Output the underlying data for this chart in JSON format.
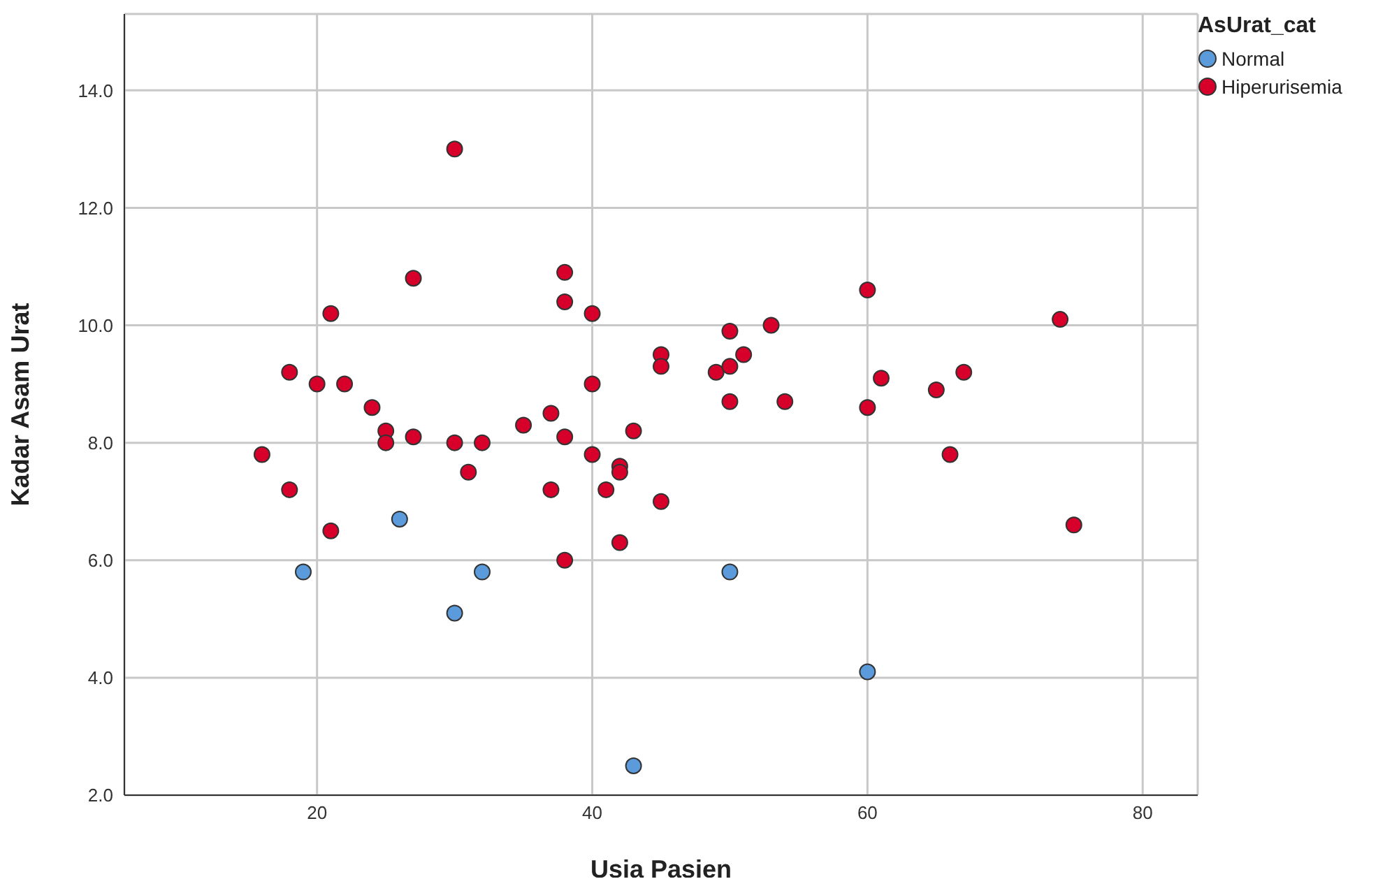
{
  "chart_data": {
    "type": "scatter",
    "xlabel": "Usia Pasien",
    "ylabel": "Kadar Asam Urat",
    "legend_title": "AsUrat_cat",
    "legend": "top right",
    "grid": true,
    "marker": "circle",
    "xlim": [
      6,
      84
    ],
    "xticks": [
      20,
      40,
      60,
      80
    ],
    "ylim": [
      2,
      15.3
    ],
    "yticks": [
      {
        "value": 2,
        "label": "2.0"
      },
      {
        "value": 4,
        "label": "4.0"
      },
      {
        "value": 6,
        "label": "6.0"
      },
      {
        "value": 8,
        "label": "8.0"
      },
      {
        "value": 10,
        "label": "10.0"
      },
      {
        "value": 12,
        "label": "12.0"
      },
      {
        "value": 14,
        "label": "14.0"
      }
    ],
    "series": [
      {
        "name": "Normal",
        "color": "#5b9bdc",
        "x": [
          19,
          26,
          30,
          32,
          43,
          50,
          60
        ],
        "values": [
          5.8,
          6.7,
          5.1,
          5.8,
          2.5,
          5.8,
          4.1
        ]
      },
      {
        "name": "Hiperurisemia",
        "color": "#d6002a",
        "x": [
          16,
          18,
          18,
          20,
          21,
          21,
          22,
          24,
          25,
          25,
          27,
          27,
          30,
          30,
          31,
          32,
          35,
          37,
          37,
          38,
          38,
          38,
          38,
          40,
          40,
          40,
          41,
          42,
          42,
          42,
          43,
          45,
          45,
          45,
          49,
          50,
          50,
          50,
          51,
          53,
          54,
          60,
          60,
          61,
          65,
          66,
          67,
          74,
          75
        ],
        "values": [
          7.8,
          9.2,
          7.2,
          9.0,
          10.2,
          6.5,
          9.0,
          8.6,
          8.2,
          8.0,
          10.8,
          8.1,
          13.0,
          8.0,
          7.5,
          8.0,
          8.3,
          8.5,
          7.2,
          10.9,
          10.4,
          8.1,
          6.0,
          10.2,
          9.0,
          7.8,
          7.2,
          7.6,
          7.5,
          6.3,
          8.2,
          9.5,
          9.3,
          7.0,
          9.2,
          9.9,
          9.3,
          8.7,
          9.5,
          10.0,
          8.7,
          10.6,
          8.6,
          9.1,
          8.9,
          7.8,
          9.2,
          10.1,
          6.6
        ]
      }
    ]
  }
}
